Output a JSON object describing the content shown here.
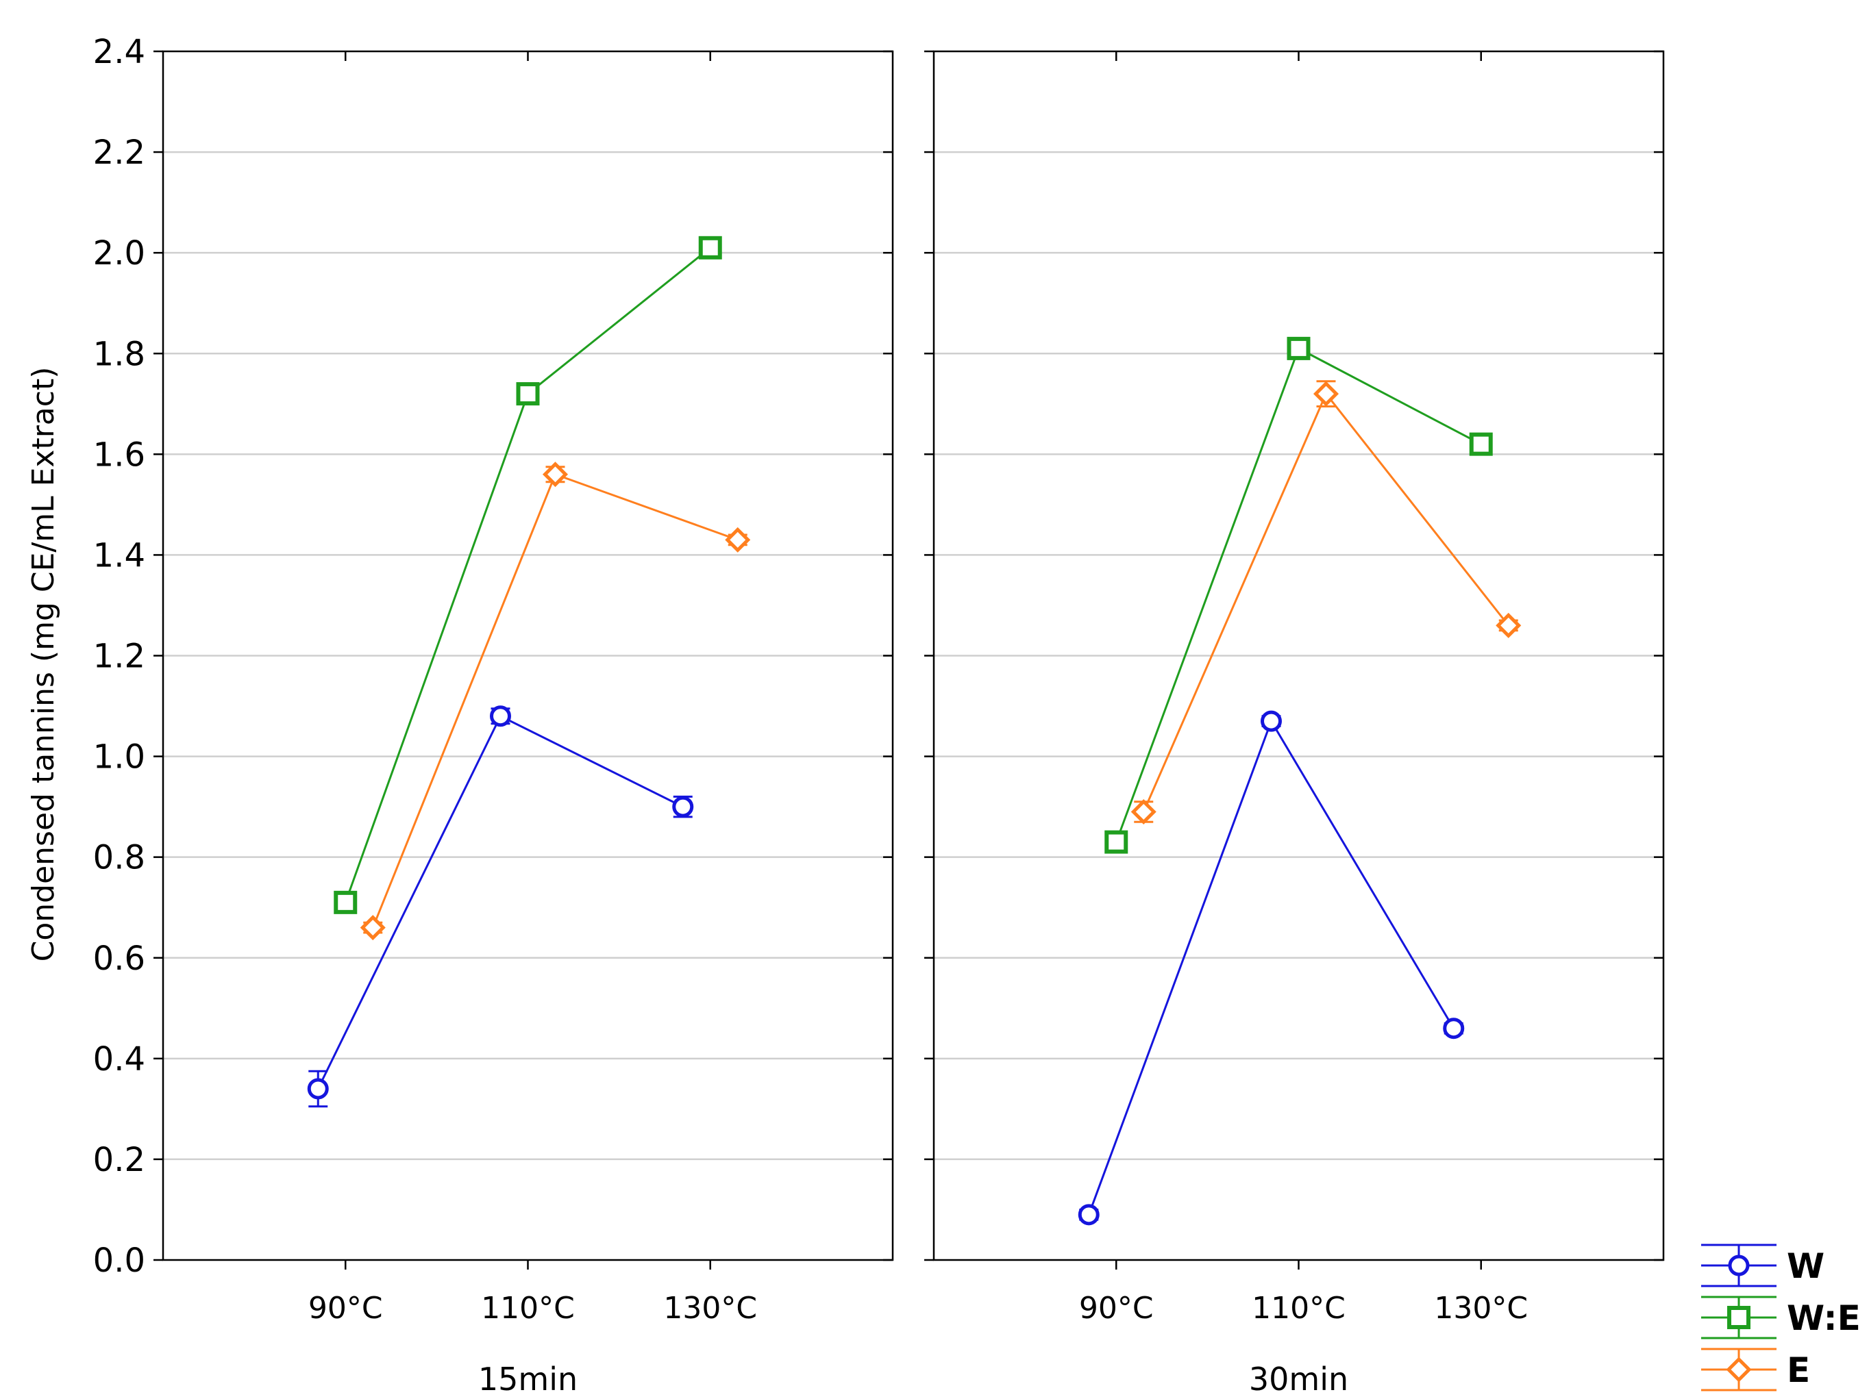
{
  "chart_data": {
    "type": "line",
    "ylabel": "Condensed tannins (mg CE/mL Extract)",
    "ylim": [
      0.0,
      2.4
    ],
    "yticks": [
      "0.0",
      "0.2",
      "0.4",
      "0.6",
      "0.8",
      "1.0",
      "1.2",
      "1.4",
      "1.6",
      "1.8",
      "2.0",
      "2.2",
      "2.4"
    ],
    "grid": true,
    "categories": [
      "90°C",
      "110°C",
      "130°C"
    ],
    "panels": [
      {
        "label": "15min",
        "series": [
          {
            "name": "W",
            "values": [
              0.34,
              1.08,
              0.9
            ],
            "errors": [
              0.035,
              0.015,
              0.02
            ]
          },
          {
            "name": "W:E",
            "values": [
              0.71,
              1.72,
              2.01
            ],
            "errors": [
              0.01,
              0.01,
              0.01
            ]
          },
          {
            "name": "E",
            "values": [
              0.66,
              1.56,
              1.43
            ],
            "errors": [
              0.01,
              0.015,
              0.01
            ]
          }
        ]
      },
      {
        "label": "30min",
        "series": [
          {
            "name": "W",
            "values": [
              0.09,
              1.07,
              0.46
            ],
            "errors": [
              0.01,
              0.01,
              0.01
            ]
          },
          {
            "name": "W:E",
            "values": [
              0.83,
              1.81,
              1.62
            ],
            "errors": [
              0.01,
              0.01,
              0.01
            ]
          },
          {
            "name": "E",
            "values": [
              0.89,
              1.72,
              1.26
            ],
            "errors": [
              0.02,
              0.025,
              0.01
            ]
          }
        ]
      }
    ],
    "legend": [
      {
        "name": "W",
        "color": "#1515dd",
        "marker": "circle"
      },
      {
        "name": "W:E",
        "color": "#1f9e1f",
        "marker": "square"
      },
      {
        "name": "E",
        "color": "#ff7f1e",
        "marker": "diamond"
      }
    ],
    "legend_position": "bottom-right, outside plot"
  }
}
